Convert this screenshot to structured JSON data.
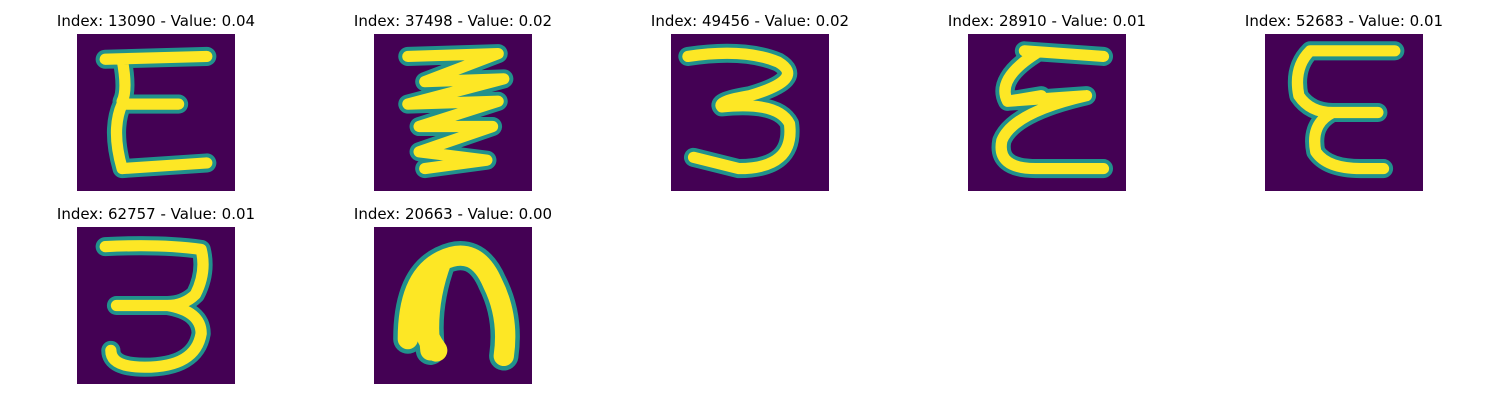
{
  "figure": {
    "panels": [
      {
        "title": "Index: 13090 - Value: 0.04",
        "glyph": "letter-e-handwritten"
      },
      {
        "title": "Index: 37498 - Value: 0.02",
        "glyph": "zigzag-stroke-handwritten"
      },
      {
        "title": "Index: 49456 - Value: 0.02",
        "glyph": "digit-3-handwritten"
      },
      {
        "title": "Index: 28910 - Value: 0.01",
        "glyph": "letter-e-handwritten"
      },
      {
        "title": "Index: 52683 - Value: 0.01",
        "glyph": "letter-e-handwritten"
      },
      {
        "title": "Index: 62757 - Value: 0.01",
        "glyph": "digit-3-handwritten"
      },
      {
        "title": "Index: 20663 - Value: 0.00",
        "glyph": "letter-n-handwritten"
      }
    ],
    "colors": {
      "background": "#440154",
      "mid": "#21918c",
      "high": "#fde725"
    }
  }
}
